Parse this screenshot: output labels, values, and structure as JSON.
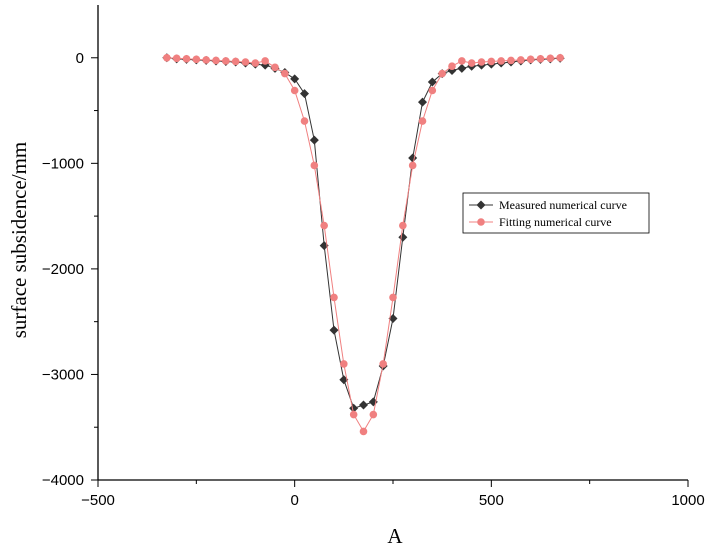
{
  "chart_data": {
    "type": "line",
    "title": "",
    "xlabel": "A",
    "ylabel": "surface subsidence/mm",
    "xlim": [
      -500,
      1000
    ],
    "ylim": [
      -4000,
      500
    ],
    "xticks": [
      -500,
      0,
      500,
      1000
    ],
    "yticks": [
      0,
      -1000,
      -2000,
      -3000,
      -4000
    ],
    "grid": false,
    "legend_position": "center-right",
    "series": [
      {
        "name": "Measured numerical curve",
        "color": "#333333",
        "marker": "diamond",
        "x": [
          -325,
          -300,
          -275,
          -250,
          -225,
          -200,
          -175,
          -150,
          -125,
          -100,
          -75,
          -50,
          -25,
          0,
          25,
          50,
          75,
          100,
          125,
          150,
          175,
          200,
          225,
          250,
          275,
          300,
          325,
          350,
          375,
          400,
          425,
          450,
          475,
          500,
          525,
          550,
          575,
          600,
          625,
          650,
          675
        ],
        "y": [
          0,
          -10,
          -15,
          -20,
          -25,
          -30,
          -35,
          -40,
          -50,
          -60,
          -70,
          -100,
          -140,
          -200,
          -340,
          -780,
          -1780,
          -2580,
          -3050,
          -3320,
          -3290,
          -3260,
          -2920,
          -2470,
          -1700,
          -950,
          -420,
          -230,
          -150,
          -120,
          -100,
          -80,
          -70,
          -60,
          -50,
          -40,
          -30,
          -20,
          -15,
          -10,
          -5
        ]
      },
      {
        "name": "Fitting numerical curve",
        "color": "#f08080",
        "marker": "circle",
        "x": [
          -325,
          -300,
          -275,
          -250,
          -225,
          -200,
          -175,
          -150,
          -125,
          -100,
          -75,
          -50,
          -25,
          0,
          25,
          50,
          75,
          100,
          125,
          150,
          175,
          200,
          225,
          250,
          275,
          300,
          325,
          350,
          375,
          400,
          425,
          450,
          475,
          500,
          525,
          550,
          575,
          600,
          625,
          650,
          675
        ],
        "y": [
          0,
          -5,
          -10,
          -15,
          -20,
          -25,
          -30,
          -35,
          -40,
          -50,
          -30,
          -90,
          -150,
          -310,
          -600,
          -1020,
          -1590,
          -2270,
          -2900,
          -3380,
          -3540,
          -3380,
          -2900,
          -2270,
          -1590,
          -1020,
          -600,
          -310,
          -150,
          -80,
          -30,
          -50,
          -40,
          -35,
          -30,
          -25,
          -20,
          -15,
          -10,
          -5,
          0
        ]
      }
    ]
  }
}
